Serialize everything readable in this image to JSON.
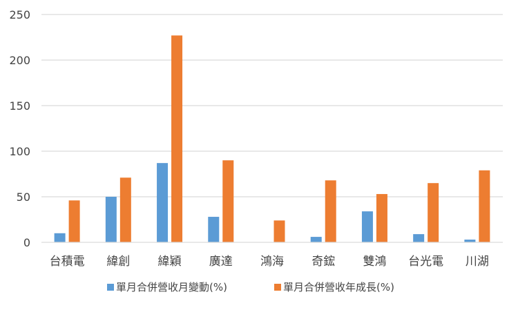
{
  "chart_data": {
    "type": "bar",
    "categories": [
      "台積電",
      "緯創",
      "緯穎",
      "廣達",
      "鴻海",
      "奇鋐",
      "雙鴻",
      "台光電",
      "川湖"
    ],
    "series": [
      {
        "name": "單月合併營收月變動(%)",
        "color": "#5B9BD5",
        "values": [
          10,
          50,
          87,
          28,
          0,
          6,
          34,
          9,
          3
        ]
      },
      {
        "name": "單月合併營收年成長(%)",
        "color": "#ED7D31",
        "values": [
          46,
          71,
          227,
          90,
          24,
          68,
          53,
          65,
          79
        ]
      }
    ],
    "yticks": [
      0,
      50,
      100,
      150,
      200,
      250
    ],
    "ylim": [
      0,
      250
    ],
    "grid": true,
    "legend_position": "bottom",
    "gridline_color": "#D9D9D9",
    "axis_color": "#D9D9D9"
  }
}
